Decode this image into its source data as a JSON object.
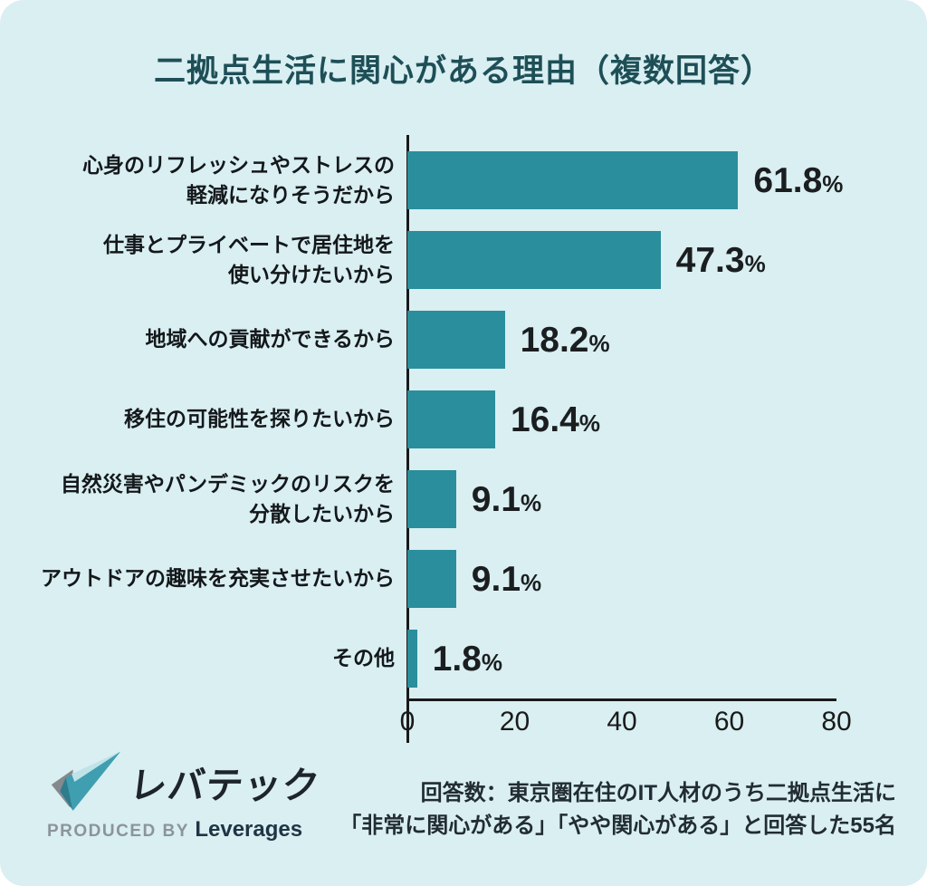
{
  "title": "二拠点生活に関心がある理由（複数回答）",
  "chart_data": {
    "type": "bar",
    "orientation": "horizontal",
    "title": "二拠点生活に関心がある理由（複数回答）",
    "categories": [
      "心身のリフレッシュやストレスの\n軽減になりそうだから",
      "仕事とプライベートで居住地を\n使い分けたいから",
      "地域への貢献ができるから",
      "移住の可能性を探りたいから",
      "自然災害やパンデミックのリスクを\n分散したいから",
      "アウトドアの趣味を充実させたいから",
      "その他"
    ],
    "values": [
      61.8,
      47.3,
      18.2,
      16.4,
      9.1,
      9.1,
      1.8
    ],
    "value_labels": [
      "61.8",
      "47.3",
      "18.2",
      "16.4",
      "9.1",
      "9.1",
      "1.8"
    ],
    "unit": "%",
    "x_ticks": [
      "0",
      "20",
      "40",
      "60",
      "80"
    ],
    "xlim": [
      0,
      80
    ],
    "grid": false,
    "legend": false
  },
  "footer": {
    "note_line1": "回答数：東京圏在住のIT人材のうち二拠点生活に",
    "note_line2": "「非常に関心がある」「やや関心がある」と回答した55名",
    "logo": {
      "brand": "レバテック",
      "produced_by": "PRODUCED BY",
      "company": "Leverages"
    }
  },
  "colors": {
    "background": "#d9eff2",
    "bar": "#2a8e9c",
    "title": "#1e4f57",
    "axis": "#1a1a1a",
    "logo_teal": "#3f9fb0",
    "logo_gray": "#84898d"
  }
}
